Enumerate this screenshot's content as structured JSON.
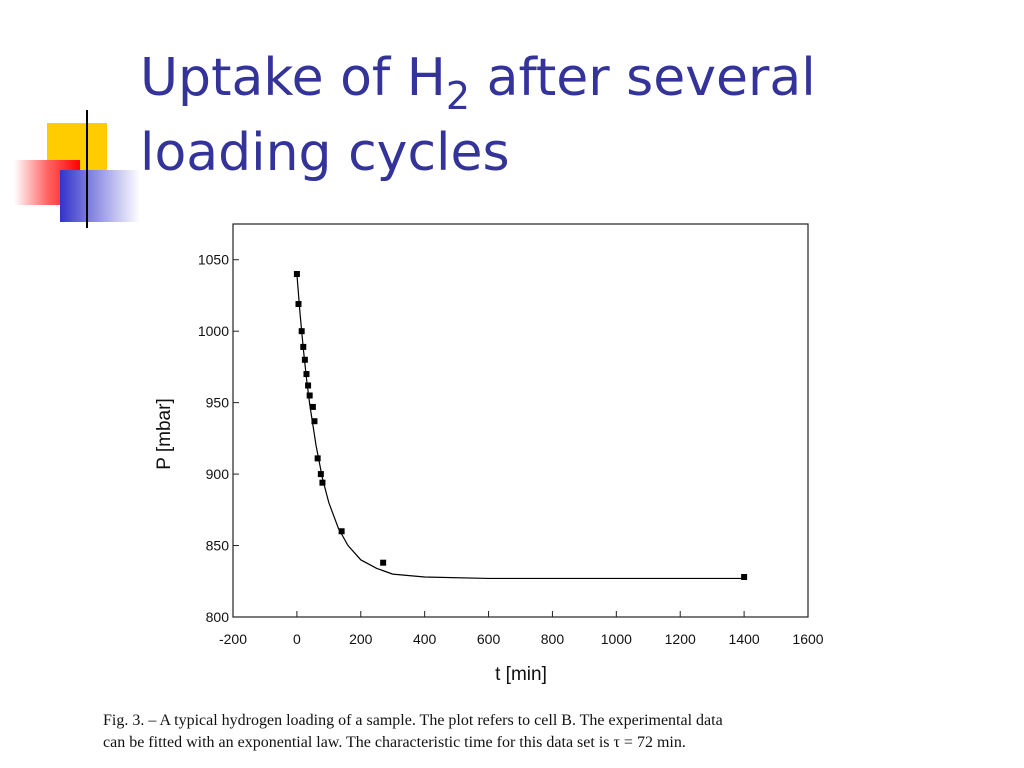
{
  "slide": {
    "title_parts": [
      "Uptake of H",
      "2",
      " after several",
      "loading cycles"
    ],
    "caption": [
      "Fig. 3. – A typical hydrogen loading of a sample.  The plot refers to cell B. The experimental data",
      "can be fitted with an exponential law. The characteristic time for this data set is τ = 72 min."
    ]
  },
  "chart_data": {
    "type": "scatter",
    "xlabel": "t [min]",
    "ylabel": "P [mbar]",
    "xlim": [
      -200,
      1600
    ],
    "xticks": [
      -200,
      0,
      200,
      400,
      600,
      800,
      1000,
      1200,
      1400,
      1600
    ],
    "ylim": [
      800,
      1075
    ],
    "yticks": [
      800,
      850,
      900,
      950,
      1000,
      1050
    ],
    "series": [
      {
        "type": "scatter",
        "color": "#000000",
        "x": [
          0,
          5,
          15,
          20,
          25,
          30,
          35,
          40,
          50,
          55,
          65,
          75,
          80,
          140,
          270,
          1400
        ],
        "values": [
          1040,
          1019,
          1000,
          989,
          980,
          970,
          962,
          955,
          947,
          937,
          911,
          900,
          894,
          860,
          838,
          828
        ]
      },
      {
        "type": "line",
        "color": "#000000",
        "x": [
          0,
          10,
          20,
          30,
          40,
          60,
          80,
          100,
          130,
          160,
          200,
          250,
          300,
          400,
          600,
          1000,
          1400
        ],
        "values": [
          1040,
          1012,
          988,
          967,
          949,
          920,
          897,
          880,
          862,
          850,
          840,
          834,
          830,
          828,
          827,
          827,
          827
        ]
      }
    ]
  }
}
